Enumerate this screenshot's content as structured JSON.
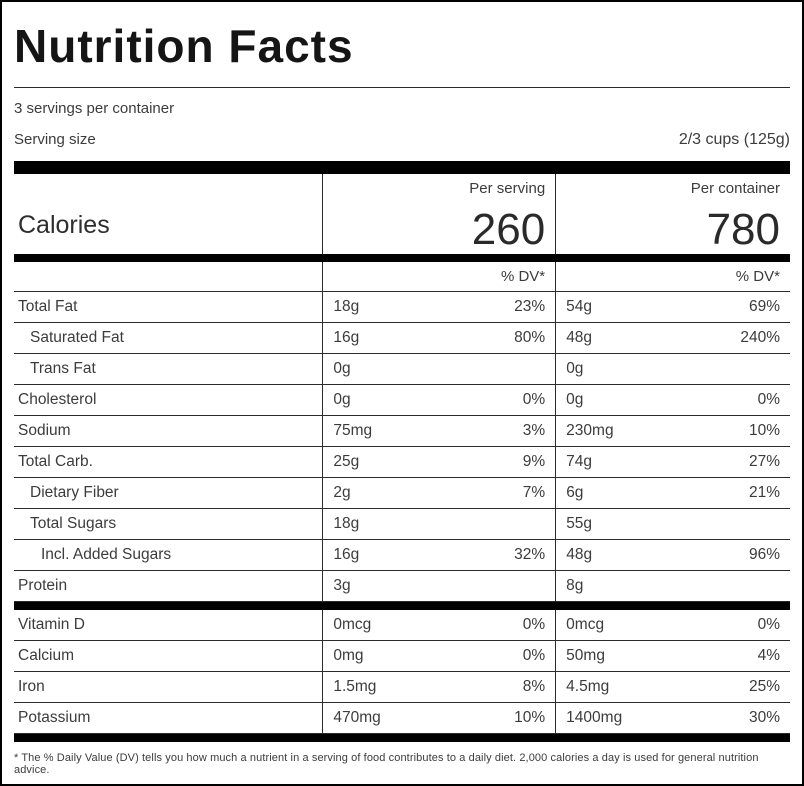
{
  "colors": {
    "background": "#ffffff",
    "text": "#3c3c3c",
    "title": "#151515",
    "border": "#000000"
  },
  "header": {
    "title": "Nutrition Facts",
    "servings_per_container": "3 servings per container",
    "serving_size_label": "Serving size",
    "serving_size_value": "2/3 cups (125g)"
  },
  "calories": {
    "label": "Calories",
    "columns": [
      {
        "label": "Per serving",
        "value": "260"
      },
      {
        "label": "Per container",
        "value": "780"
      }
    ]
  },
  "dv_header": "% DV*",
  "nutrient_rows": [
    {
      "name": "Total Fat",
      "indent": 0,
      "serving_amount": "18g",
      "serving_dv": "23%",
      "container_amount": "54g",
      "container_dv": "69%"
    },
    {
      "name": "Saturated Fat",
      "indent": 1,
      "serving_amount": "16g",
      "serving_dv": "80%",
      "container_amount": "48g",
      "container_dv": "240%"
    },
    {
      "name": "Trans Fat",
      "indent": 1,
      "serving_amount": "0g",
      "serving_dv": "",
      "container_amount": "0g",
      "container_dv": ""
    },
    {
      "name": "Cholesterol",
      "indent": 0,
      "serving_amount": "0g",
      "serving_dv": "0%",
      "container_amount": "0g",
      "container_dv": "0%"
    },
    {
      "name": "Sodium",
      "indent": 0,
      "serving_amount": "75mg",
      "serving_dv": "3%",
      "container_amount": "230mg",
      "container_dv": "10%"
    },
    {
      "name": "Total Carb.",
      "indent": 0,
      "serving_amount": "25g",
      "serving_dv": "9%",
      "container_amount": "74g",
      "container_dv": "27%"
    },
    {
      "name": "Dietary Fiber",
      "indent": 1,
      "serving_amount": "2g",
      "serving_dv": "7%",
      "container_amount": "6g",
      "container_dv": "21%"
    },
    {
      "name": "Total Sugars",
      "indent": 1,
      "serving_amount": "18g",
      "serving_dv": "",
      "container_amount": "55g",
      "container_dv": ""
    },
    {
      "name": "Incl. Added Sugars",
      "indent": 2,
      "serving_amount": "16g",
      "serving_dv": "32%",
      "container_amount": "48g",
      "container_dv": "96%"
    },
    {
      "name": "Protein",
      "indent": 0,
      "serving_amount": "3g",
      "serving_dv": "",
      "container_amount": "8g",
      "container_dv": ""
    }
  ],
  "vitamin_rows": [
    {
      "name": "Vitamin D",
      "indent": 0,
      "serving_amount": "0mcg",
      "serving_dv": "0%",
      "container_amount": "0mcg",
      "container_dv": "0%"
    },
    {
      "name": "Calcium",
      "indent": 0,
      "serving_amount": "0mg",
      "serving_dv": "0%",
      "container_amount": "50mg",
      "container_dv": "4%"
    },
    {
      "name": "Iron",
      "indent": 0,
      "serving_amount": "1.5mg",
      "serving_dv": "8%",
      "container_amount": "4.5mg",
      "container_dv": "25%"
    },
    {
      "name": "Potassium",
      "indent": 0,
      "serving_amount": "470mg",
      "serving_dv": "10%",
      "container_amount": "1400mg",
      "container_dv": "30%"
    }
  ],
  "footnote": "* The % Daily Value (DV) tells you how much a nutrient in a serving of food contributes to a daily diet. 2,000 calories a day is used for general nutrition advice."
}
